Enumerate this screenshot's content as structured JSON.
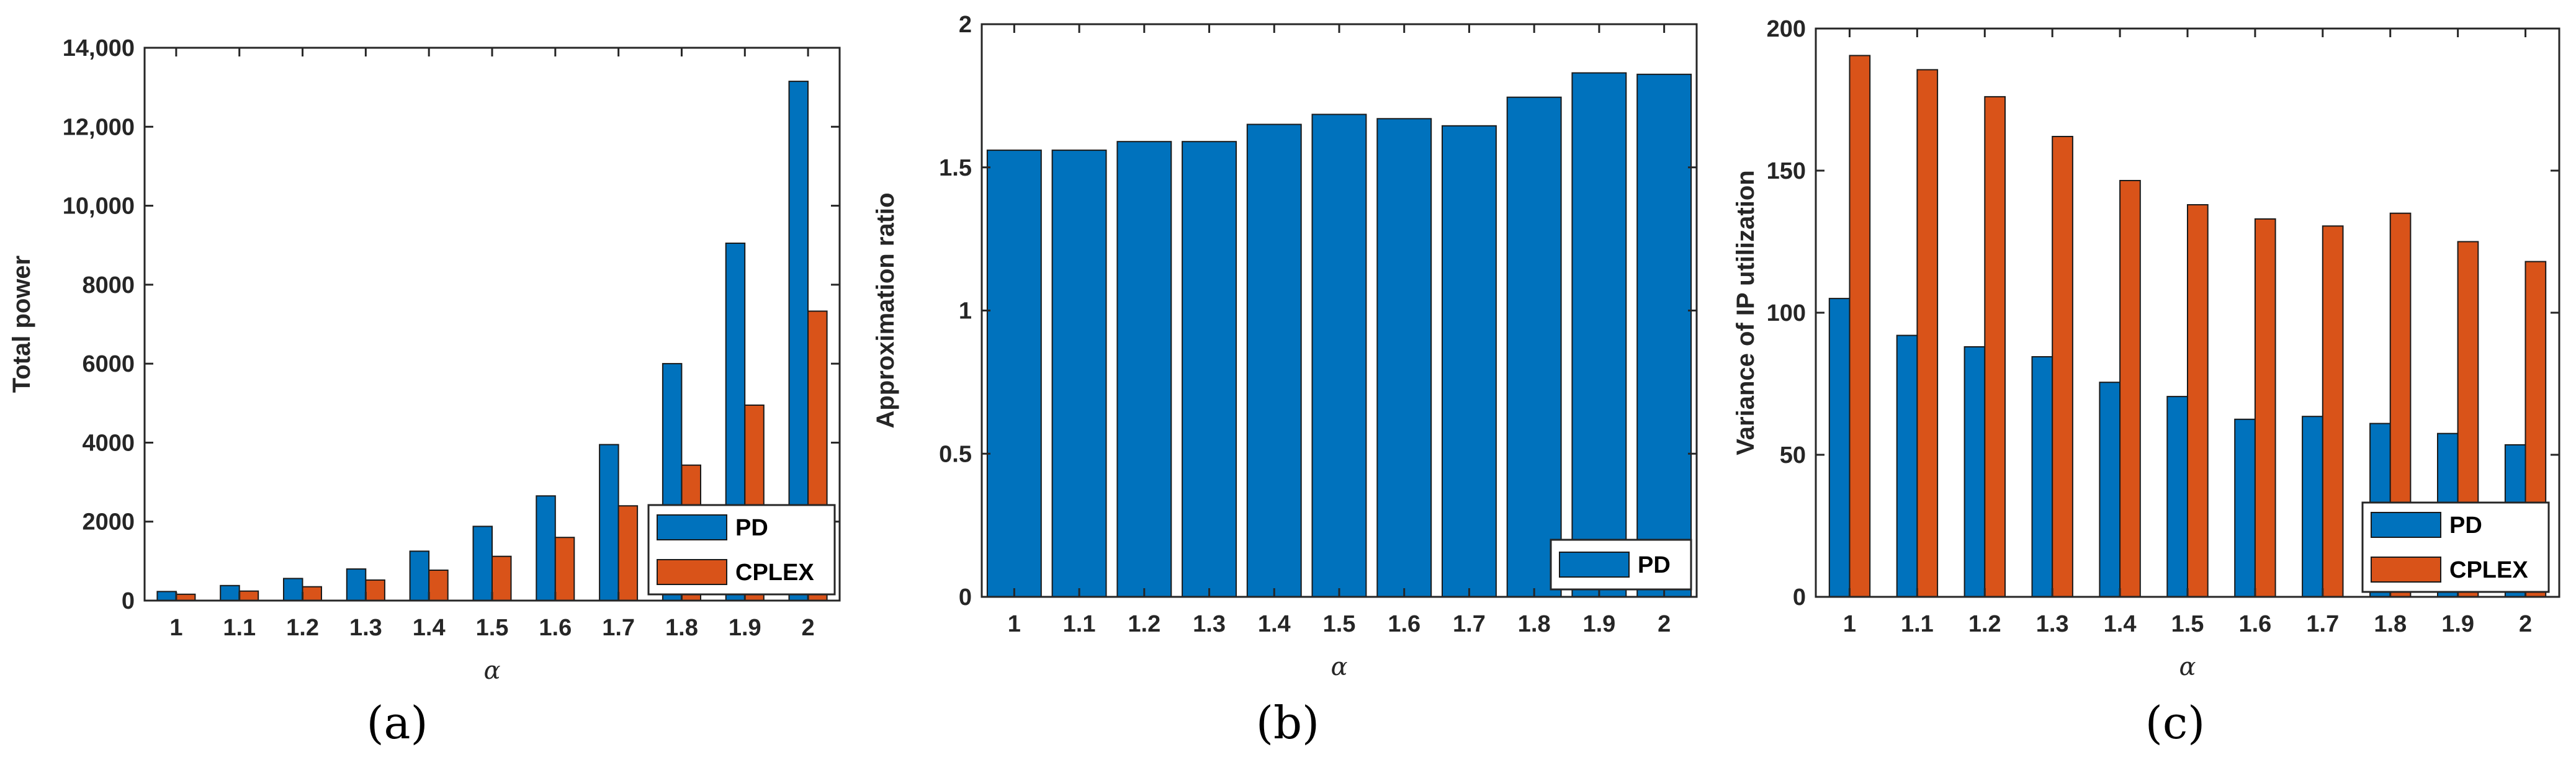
{
  "colors": {
    "PD": "#0072BD",
    "CPLEX": "#D95319"
  },
  "panel_labels": [
    "(a)",
    "(b)",
    "(c)"
  ],
  "chart_data": [
    {
      "type": "bar",
      "xlabel": "α",
      "ylabel": "Total power",
      "categories": [
        "1",
        "1.1",
        "1.2",
        "1.3",
        "1.4",
        "1.5",
        "1.6",
        "1.7",
        "1.8",
        "1.9",
        "2"
      ],
      "ylim": [
        0,
        14000
      ],
      "yticks": [
        0,
        2000,
        4000,
        6000,
        8000,
        10000,
        12000,
        14000
      ],
      "ytick_labels": [
        "0",
        "2000",
        "4000",
        "6000",
        "8000",
        "10,000",
        "12,000",
        "14,000"
      ],
      "series": [
        {
          "name": "PD",
          "values": [
            230,
            380,
            560,
            800,
            1250,
            1880,
            2650,
            3950,
            6000,
            9050,
            13150
          ]
        },
        {
          "name": "CPLEX",
          "values": [
            160,
            240,
            350,
            520,
            770,
            1120,
            1600,
            2400,
            3430,
            4950,
            7330
          ]
        }
      ],
      "legend": "bottom-right"
    },
    {
      "type": "bar",
      "xlabel": "α",
      "ylabel": "Approximation ratio",
      "categories": [
        "1",
        "1.1",
        "1.2",
        "1.3",
        "1.4",
        "1.5",
        "1.6",
        "1.7",
        "1.8",
        "1.9",
        "2"
      ],
      "ylim": [
        0,
        2
      ],
      "yticks": [
        0,
        0.5,
        1,
        1.5,
        2
      ],
      "ytick_labels": [
        "0",
        "0.5",
        "1",
        "1.5",
        "2"
      ],
      "series": [
        {
          "name": "PD",
          "values": [
            1.56,
            1.56,
            1.59,
            1.59,
            1.65,
            1.685,
            1.67,
            1.645,
            1.745,
            1.83,
            1.825
          ]
        }
      ],
      "legend": "bottom-right"
    },
    {
      "type": "bar",
      "xlabel": "α",
      "ylabel": "Variance of IP utilization",
      "categories": [
        "1",
        "1.1",
        "1.2",
        "1.3",
        "1.4",
        "1.5",
        "1.6",
        "1.7",
        "1.8",
        "1.9",
        "2"
      ],
      "ylim": [
        0,
        200
      ],
      "yticks": [
        0,
        50,
        100,
        150,
        200
      ],
      "ytick_labels": [
        "0",
        "50",
        "100",
        "150",
        "200"
      ],
      "series": [
        {
          "name": "PD",
          "values": [
            105,
            92,
            88,
            84.5,
            75.5,
            70.5,
            62.5,
            63.5,
            61,
            57.5,
            53.5
          ]
        },
        {
          "name": "CPLEX",
          "values": [
            190.5,
            185.5,
            176,
            162,
            146.5,
            138,
            133,
            130.5,
            135,
            125,
            118
          ]
        }
      ],
      "legend": "bottom-right"
    }
  ]
}
